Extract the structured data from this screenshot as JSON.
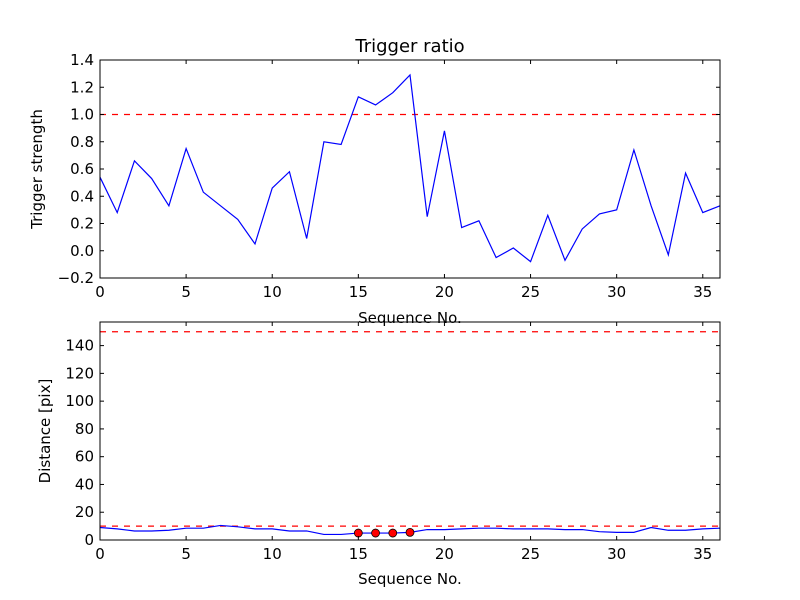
{
  "chart_data": [
    {
      "type": "line",
      "title": "Trigger ratio",
      "xlabel": "Sequence No.",
      "ylabel": "Trigger strength",
      "xlim": [
        0,
        36
      ],
      "ylim": [
        -0.2,
        1.4
      ],
      "xticks": [
        0,
        5,
        10,
        15,
        20,
        25,
        30,
        35
      ],
      "yticks": [
        -0.2,
        0.0,
        0.2,
        0.4,
        0.6,
        0.8,
        1.0,
        1.2,
        1.4
      ],
      "ytick_labels": [
        "−0.2",
        "0.0",
        "0.2",
        "0.4",
        "0.6",
        "0.8",
        "1.0",
        "1.2",
        "1.4"
      ],
      "grid": false,
      "series": [
        {
          "name": "trigger strength",
          "color": "#0000ff",
          "x": [
            0,
            1,
            2,
            3,
            4,
            5,
            6,
            7,
            8,
            9,
            10,
            11,
            12,
            13,
            14,
            15,
            16,
            17,
            18,
            19,
            20,
            21,
            22,
            23,
            24,
            25,
            26,
            27,
            28,
            29,
            30,
            31,
            32,
            33,
            34,
            35,
            36
          ],
          "values": [
            0.54,
            0.28,
            0.66,
            0.53,
            0.33,
            0.75,
            0.43,
            0.33,
            0.23,
            0.05,
            0.46,
            0.58,
            0.09,
            0.8,
            0.78,
            1.13,
            1.07,
            1.16,
            1.29,
            0.25,
            0.88,
            0.17,
            0.22,
            -0.05,
            0.02,
            -0.08,
            0.26,
            -0.07,
            0.16,
            0.27,
            0.3,
            0.74,
            0.33,
            -0.03,
            0.57,
            0.28,
            0.33
          ]
        }
      ],
      "hlines": [
        {
          "y": 1.0,
          "color": "#ff0000",
          "style": "dashed"
        }
      ]
    },
    {
      "type": "line",
      "title": "",
      "xlabel": "Sequence No.",
      "ylabel": "Distance [pix]",
      "xlim": [
        0,
        36
      ],
      "ylim": [
        0,
        157
      ],
      "xticks": [
        0,
        5,
        10,
        15,
        20,
        25,
        30,
        35
      ],
      "yticks": [
        0,
        20,
        40,
        60,
        80,
        100,
        120,
        140
      ],
      "ytick_labels": [
        "0",
        "20",
        "40",
        "60",
        "80",
        "100",
        "120",
        "140"
      ],
      "grid": false,
      "series": [
        {
          "name": "distance",
          "color": "#0000ff",
          "x": [
            0,
            1,
            2,
            3,
            4,
            5,
            6,
            7,
            8,
            9,
            10,
            11,
            12,
            13,
            14,
            15,
            16,
            17,
            18,
            19,
            20,
            21,
            22,
            23,
            24,
            25,
            26,
            27,
            28,
            29,
            30,
            31,
            32,
            33,
            34,
            35,
            36
          ],
          "values": [
            9,
            8,
            6.5,
            6.5,
            7,
            8.5,
            8.5,
            10.5,
            9.5,
            8,
            8,
            6.5,
            6.5,
            4,
            4,
            5,
            5,
            5,
            5.5,
            7.5,
            7.5,
            8,
            8.5,
            8.5,
            8,
            8,
            8,
            7.5,
            7.5,
            6,
            5.5,
            5.5,
            9,
            7,
            7,
            8,
            8.5
          ]
        }
      ],
      "markers": {
        "color": "#ff0000",
        "x": [
          15,
          16,
          17,
          18
        ],
        "values": [
          5,
          5,
          5,
          5.5
        ]
      },
      "hlines": [
        {
          "y": 150,
          "color": "#ff0000",
          "style": "dashed"
        },
        {
          "y": 10,
          "color": "#ff0000",
          "style": "dashed"
        }
      ]
    }
  ]
}
